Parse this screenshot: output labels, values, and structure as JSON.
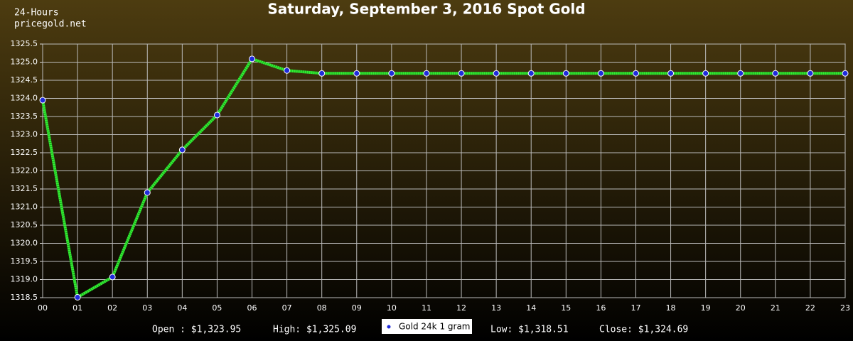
{
  "chart_data": {
    "type": "line",
    "title": "Saturday, September 3, 2016 Spot Gold",
    "corner_texts": [
      "24-Hours",
      "pricegold.net"
    ],
    "categories": [
      "00",
      "01",
      "02",
      "03",
      "04",
      "05",
      "06",
      "07",
      "08",
      "09",
      "10",
      "11",
      "12",
      "13",
      "14",
      "15",
      "16",
      "17",
      "18",
      "19",
      "20",
      "21",
      "22",
      "23"
    ],
    "series": [
      {
        "name": "Gold 24k 1 gram",
        "color": "#33ee33",
        "marker_color": "#1f2bdc",
        "values": [
          1323.95,
          1318.51,
          1319.07,
          1321.4,
          1322.58,
          1323.54,
          1325.09,
          1324.77,
          1324.69,
          1324.69,
          1324.69,
          1324.69,
          1324.69,
          1324.69,
          1324.69,
          1324.69,
          1324.69,
          1324.69,
          1324.69,
          1324.69,
          1324.69,
          1324.69,
          1324.69,
          1324.69
        ]
      }
    ],
    "ylim": [
      1318.5,
      1325.5
    ],
    "yticks": [
      1318.5,
      {
        "value": 1319,
        "label": "1319.0"
      },
      1319.5,
      {
        "value": 1320,
        "label": "1320.0"
      },
      1320.5,
      {
        "value": 1321,
        "label": "1321.0"
      },
      1321.5,
      {
        "value": 1322,
        "label": "1322.0"
      },
      1322.5,
      {
        "value": 1323,
        "label": "1323.0"
      },
      1323.5,
      {
        "value": 1324,
        "label": "1324.0"
      },
      1324.5,
      {
        "value": 1325,
        "label": "1325.0"
      },
      1325.5
    ],
    "grid": true,
    "legend": "bottom",
    "footer_left": [
      "Open : $1,323.95",
      "High: $1,325.09"
    ],
    "footer_right": [
      "Low: $1,318.51",
      "Close: $1,324.69"
    ]
  }
}
